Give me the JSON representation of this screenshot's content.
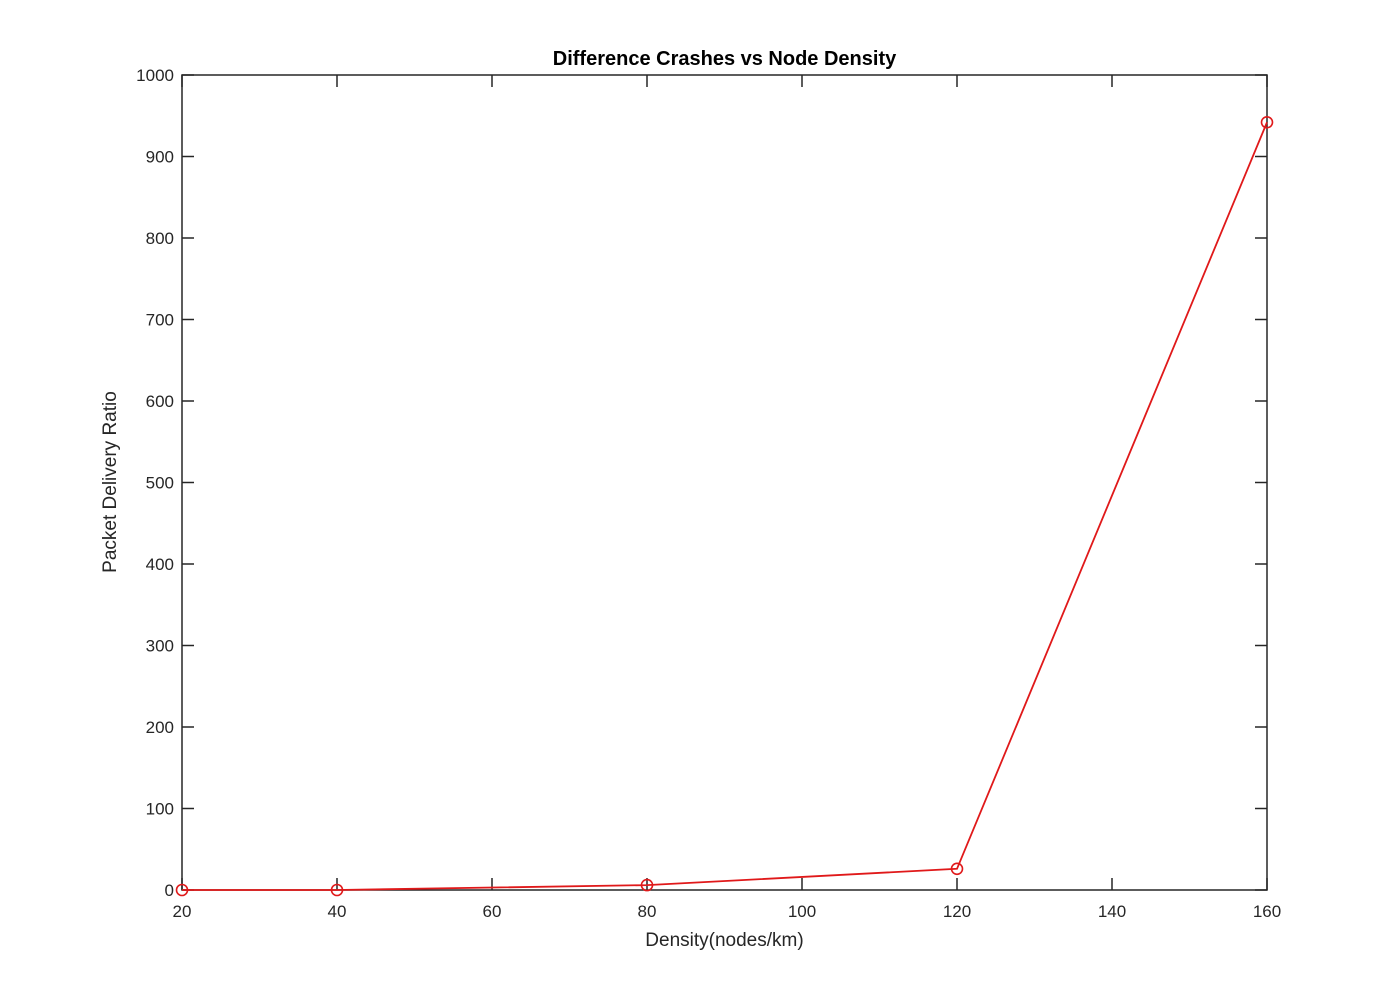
{
  "chart_data": {
    "type": "line",
    "title": "Difference Crashes vs Node Density",
    "xlabel": "Density(nodes/km)",
    "ylabel": "Packet Delivery Ratio",
    "xlim": [
      20,
      160
    ],
    "ylim": [
      0,
      1000
    ],
    "xticks": [
      20,
      40,
      60,
      80,
      100,
      120,
      140,
      160
    ],
    "yticks": [
      0,
      100,
      200,
      300,
      400,
      500,
      600,
      700,
      800,
      900,
      1000
    ],
    "grid": false,
    "series": [
      {
        "color": "#e0191a",
        "marker": "circle",
        "x": [
          20,
          40,
          80,
          120,
          160
        ],
        "y": [
          0,
          0,
          6,
          26,
          942
        ]
      }
    ]
  }
}
